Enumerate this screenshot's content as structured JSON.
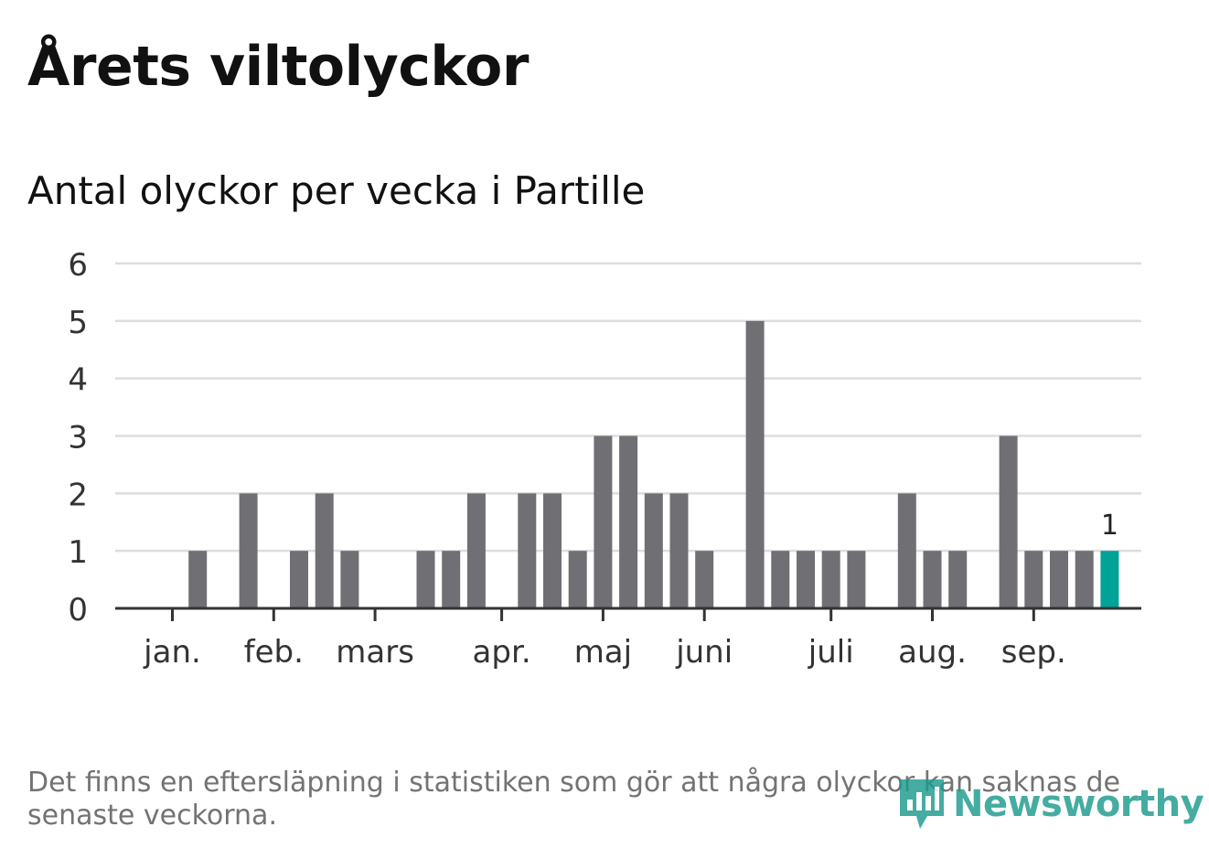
{
  "title": "Årets viltolyckor",
  "chart_data": {
    "type": "bar",
    "title": "Antal olyckor per vecka i Partille",
    "ylim": [
      0,
      6
    ],
    "yticks": [
      "0",
      "1",
      "2",
      "3",
      "4",
      "5",
      "6"
    ],
    "weeks": [
      1,
      2,
      3,
      4,
      5,
      6,
      7,
      8,
      9,
      10,
      11,
      12,
      13,
      14,
      15,
      16,
      17,
      18,
      19,
      20,
      21,
      22,
      23,
      24,
      25,
      26,
      27,
      28,
      29,
      30,
      31,
      32,
      33,
      34,
      35,
      36,
      37,
      38,
      39
    ],
    "values": [
      0,
      1,
      0,
      2,
      0,
      1,
      2,
      1,
      0,
      0,
      1,
      1,
      2,
      0,
      2,
      2,
      1,
      3,
      3,
      2,
      2,
      1,
      0,
      5,
      1,
      1,
      1,
      1,
      0,
      2,
      1,
      1,
      0,
      3,
      1,
      1,
      1,
      1,
      null
    ],
    "highlight_week": 38,
    "highlight_label": "1",
    "month_labels": [
      {
        "label": "jan.",
        "week": 1
      },
      {
        "label": "feb.",
        "week": 5
      },
      {
        "label": "mars",
        "week": 9
      },
      {
        "label": "apr.",
        "week": 14
      },
      {
        "label": "maj",
        "week": 18
      },
      {
        "label": "juni",
        "week": 22
      },
      {
        "label": "juli",
        "week": 27
      },
      {
        "label": "aug.",
        "week": 31
      },
      {
        "label": "sep.",
        "week": 35
      }
    ],
    "grid": true,
    "colors": {
      "bar": "#6f6f74",
      "highlight": "#00a396",
      "grid": "#dddddd",
      "axis": "#333333"
    }
  },
  "note": "Det finns en eftersläpning i statistiken som gör att några olyckor kan saknas de senaste veckorna.",
  "logo": {
    "text": "Newsworthy",
    "icon": "bar-chart-pin-icon",
    "color": "#1d9b8e"
  }
}
